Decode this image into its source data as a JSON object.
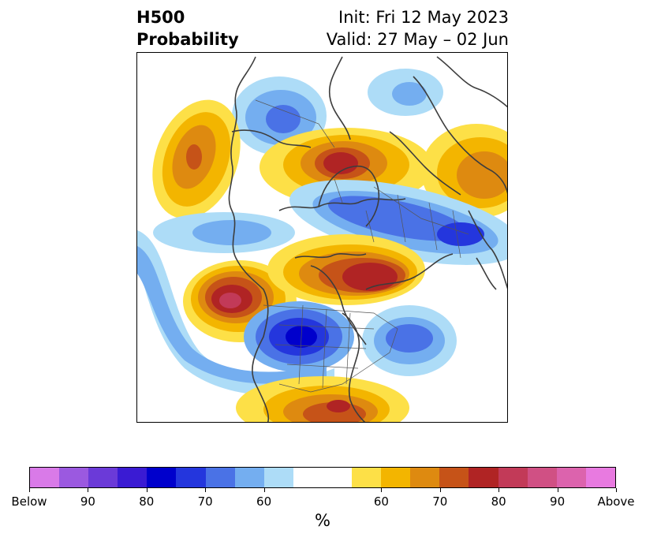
{
  "header": {
    "title_line1": "H500",
    "title_line2": "Probability",
    "init_line": "Init: Fri 12 May 2023",
    "valid_line": "Valid: 27 May – 02 Jun"
  },
  "map": {
    "projection": "north-polar-stereographic",
    "variable": "H500 probability anomaly",
    "region": "North America / Arctic"
  },
  "colorbar": {
    "unit": "%",
    "segments": [
      {
        "category": "below",
        "color": "#d97ae8"
      },
      {
        "category": "below",
        "color": "#9b59e0"
      },
      {
        "category": "below",
        "color": "#6b3ad8"
      },
      {
        "category": "below",
        "color": "#3a1bd3"
      },
      {
        "category": "below",
        "color": "#0000cc"
      },
      {
        "category": "below",
        "color": "#2436dd"
      },
      {
        "category": "below",
        "color": "#4a72e6"
      },
      {
        "category": "below",
        "color": "#74aef0"
      },
      {
        "category": "below",
        "color": "#addcf7"
      },
      {
        "category": "neutral",
        "color": "#ffffff"
      },
      {
        "category": "neutral",
        "color": "#ffffff"
      },
      {
        "category": "above",
        "color": "#fde047"
      },
      {
        "category": "above",
        "color": "#f3b500"
      },
      {
        "category": "above",
        "color": "#de8a10"
      },
      {
        "category": "above",
        "color": "#c65318"
      },
      {
        "category": "above",
        "color": "#b02424"
      },
      {
        "category": "above",
        "color": "#c23a58"
      },
      {
        "category": "above",
        "color": "#d05084"
      },
      {
        "category": "above",
        "color": "#dc63ad"
      },
      {
        "category": "above",
        "color": "#e87ae0"
      }
    ],
    "tick_labels": [
      "Below",
      "90",
      "80",
      "70",
      "60",
      "60",
      "70",
      "80",
      "90",
      "Above"
    ],
    "tick_boundaries": [
      0,
      2,
      4,
      6,
      8,
      12,
      14,
      16,
      18,
      20
    ]
  }
}
